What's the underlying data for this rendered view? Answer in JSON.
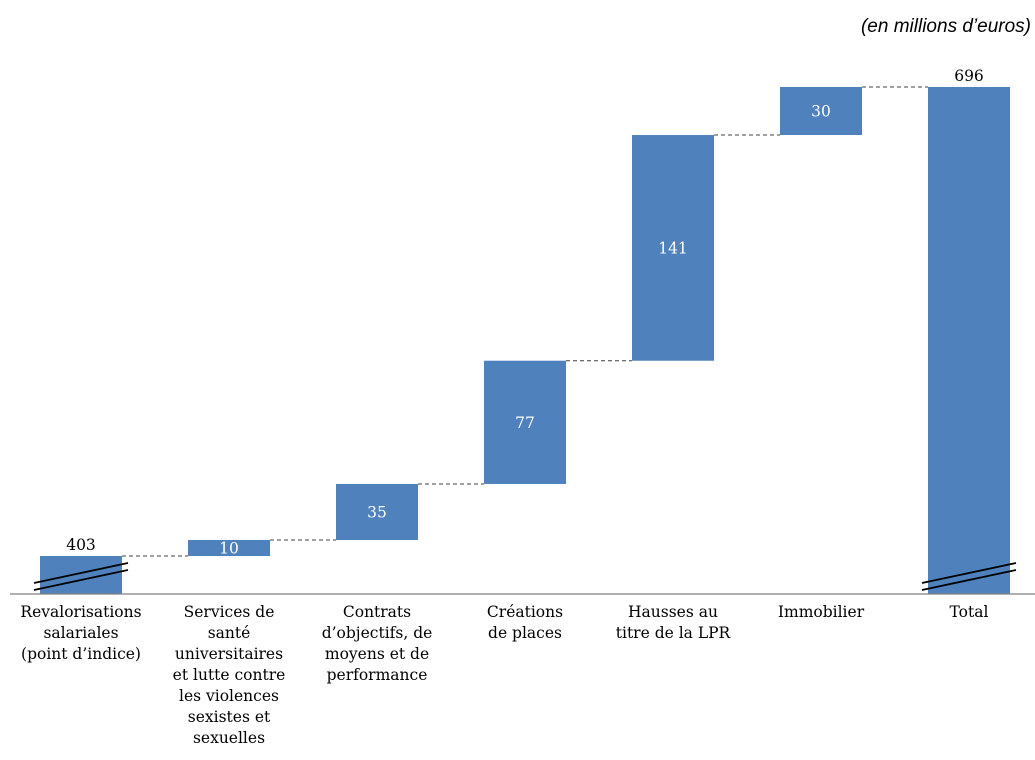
{
  "chart_data": {
    "type": "waterfall",
    "unit_note": "(en millions d’euros)",
    "categories": [
      "Revalorisations\nsalariales\n(point d’indice)",
      "Services de\nsanté\nuniversitaires\net lutte contre\nles violences\nsexistes et\nsexuelles",
      "Contrats\nd’objectifs, de\nmoyens et de\nperformance",
      "Créations\nde places",
      "Hausses au\ntitre de la LPR",
      "Immobilier",
      "Total"
    ],
    "values": [
      403,
      10,
      35,
      77,
      141,
      30,
      696
    ],
    "value_labels": [
      "403",
      "10",
      "35",
      "77",
      "141",
      "30",
      "696"
    ],
    "kinds": [
      "base",
      "increment",
      "increment",
      "increment",
      "increment",
      "increment",
      "total"
    ],
    "axis_break": true,
    "colors": {
      "bar": "#4f81bd",
      "connector": "#404040",
      "axis": "#808080"
    }
  }
}
